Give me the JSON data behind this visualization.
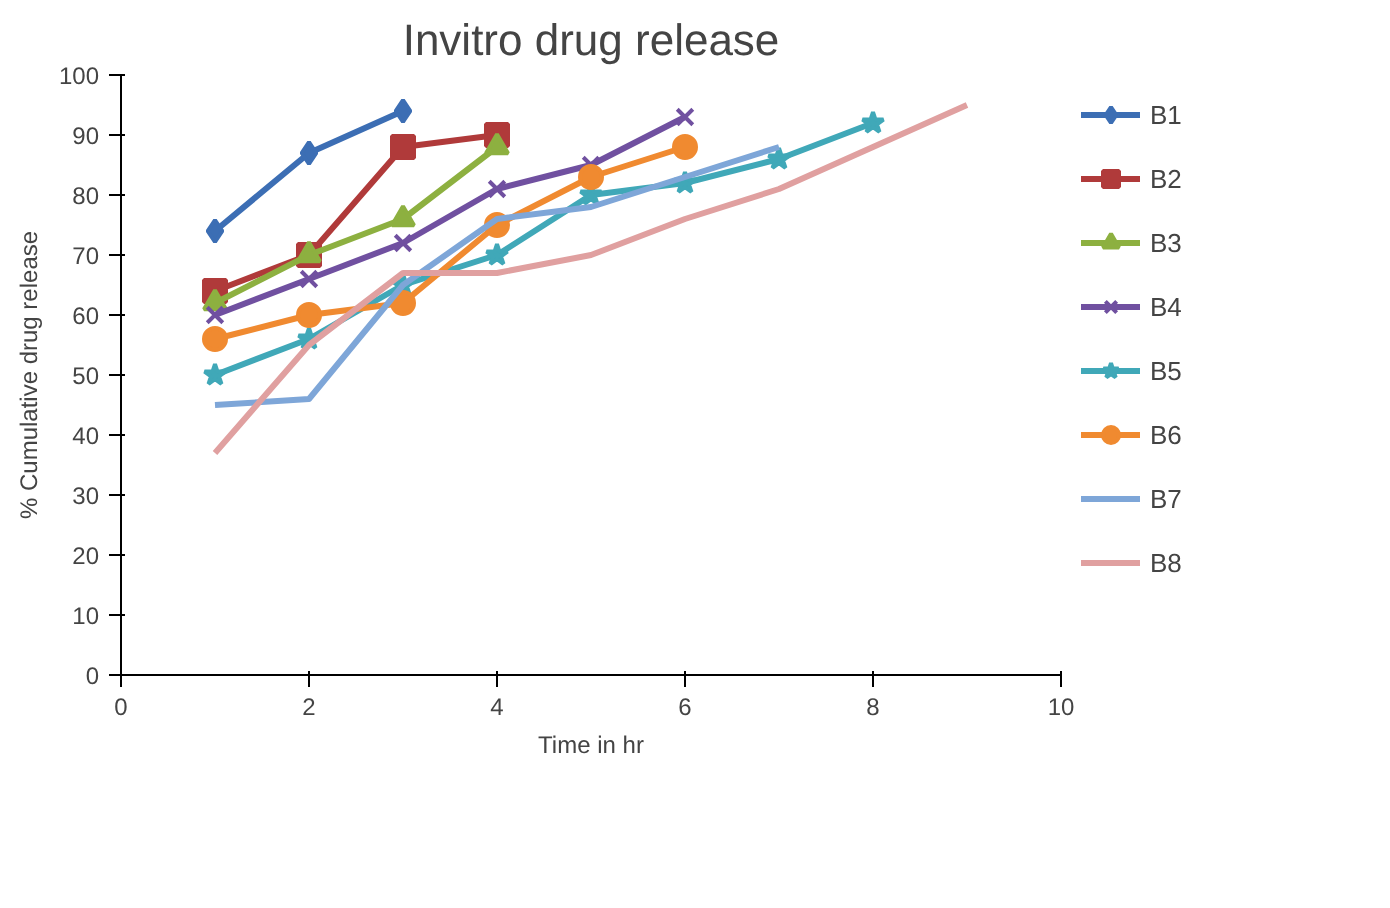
{
  "chart_data": {
    "type": "line",
    "title": "Invitro drug release",
    "xlabel": "Time in hr",
    "ylabel": "% Cumulative drug release",
    "xlim": [
      0,
      10
    ],
    "xticks": [
      0,
      2,
      4,
      6,
      8,
      10
    ],
    "ylim": [
      0,
      100
    ],
    "yticks": [
      0,
      10,
      20,
      30,
      40,
      50,
      60,
      70,
      80,
      90,
      100
    ],
    "grid": false,
    "legend": "right",
    "series": [
      {
        "name": "B1",
        "color": "#3c6eb4",
        "marker": "diamond",
        "x": [
          1,
          2,
          3
        ],
        "values": [
          74,
          87,
          94
        ]
      },
      {
        "name": "B2",
        "color": "#b03a3a",
        "marker": "square",
        "x": [
          1,
          2,
          3,
          4
        ],
        "values": [
          64,
          70,
          88,
          90
        ]
      },
      {
        "name": "B3",
        "color": "#8db040",
        "marker": "triangle",
        "x": [
          1,
          2,
          3,
          4
        ],
        "values": [
          62,
          70,
          76,
          88
        ]
      },
      {
        "name": "B4",
        "color": "#7050a0",
        "marker": "cross",
        "x": [
          1,
          2,
          3,
          4,
          5,
          6
        ],
        "values": [
          60,
          66,
          72,
          81,
          85,
          93
        ]
      },
      {
        "name": "B5",
        "color": "#40a8b8",
        "marker": "star",
        "x": [
          1,
          2,
          3,
          4,
          5,
          6,
          7,
          8
        ],
        "values": [
          50,
          56,
          65,
          70,
          80,
          82,
          86,
          92
        ]
      },
      {
        "name": "B6",
        "color": "#f08a30",
        "marker": "circle",
        "x": [
          1,
          2,
          3,
          4,
          5,
          6
        ],
        "values": [
          56,
          60,
          62,
          75,
          83,
          88
        ]
      },
      {
        "name": "B7",
        "color": "#7ea6d8",
        "marker": "none",
        "x": [
          1,
          2,
          3,
          4,
          5,
          6,
          7
        ],
        "values": [
          45,
          46,
          65,
          76,
          78,
          83,
          88
        ]
      },
      {
        "name": "B8",
        "color": "#e0a0a0",
        "marker": "none",
        "x": [
          1,
          2,
          3,
          4,
          5,
          6,
          7,
          8,
          9
        ],
        "values": [
          37,
          55,
          67,
          67,
          70,
          76,
          81,
          88,
          95
        ]
      }
    ]
  }
}
